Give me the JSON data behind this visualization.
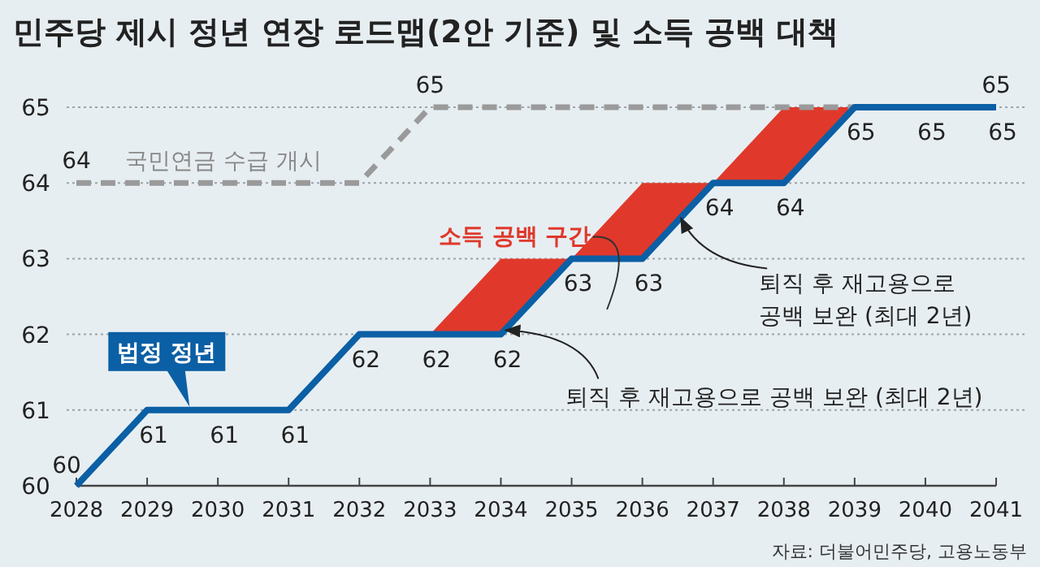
{
  "chart_data": {
    "type": "line",
    "title": "민주당 제시 정년 연장 로드맵(2안 기준) 및 소득 공백 대책",
    "xlim": [
      2028,
      2041
    ],
    "xticks": [
      2028,
      2029,
      2030,
      2031,
      2032,
      2033,
      2034,
      2035,
      2036,
      2037,
      2038,
      2039,
      2040,
      2041
    ],
    "ylim": [
      60,
      65
    ],
    "yticks": [
      60,
      61,
      62,
      63,
      64,
      65
    ],
    "grid": "y",
    "legend": false,
    "series": [
      {
        "name": "소득 공백 구간",
        "type": "area",
        "color": "#e0392b",
        "x": [
          2033,
          2034,
          2035,
          2036,
          2037,
          2038,
          2039
        ],
        "values": [
          62,
          63,
          63,
          64,
          64,
          65,
          65
        ]
      },
      {
        "name": "국민연금 수급 개시",
        "type": "line",
        "color": "#9a9a9a",
        "line_style": "dashed",
        "x": [
          2028,
          2029,
          2030,
          2031,
          2032,
          2033,
          2034,
          2035,
          2036,
          2037,
          2038,
          2039,
          2040,
          2041
        ],
        "values": [
          64,
          64,
          64,
          64,
          64,
          65,
          65,
          65,
          65,
          65,
          65,
          65,
          65,
          65
        ],
        "value_labels": [
          "64",
          null,
          null,
          null,
          null,
          "65",
          null,
          null,
          null,
          null,
          null,
          null,
          null,
          "65"
        ]
      },
      {
        "name": "법정 정년",
        "type": "line",
        "color": "#0b5fa5",
        "line_style": "solid",
        "x": [
          2028,
          2029,
          2030,
          2031,
          2032,
          2033,
          2034,
          2035,
          2036,
          2037,
          2038,
          2039,
          2040,
          2041
        ],
        "values": [
          60,
          61,
          61,
          61,
          62,
          62,
          62,
          63,
          63,
          64,
          64,
          65,
          65,
          65
        ],
        "value_labels": [
          "60",
          "61",
          "61",
          "61",
          "62",
          "62",
          "62",
          "63",
          "63",
          "64",
          "64",
          "65",
          "65",
          "65"
        ]
      }
    ],
    "annotations": [
      {
        "text": "퇴직 후 재고용으로 공백 보완 (최대 2년)",
        "x": 2034,
        "y": 62.1
      },
      {
        "text": "퇴직 후 재고용으로\n공백 보완 (최대 2년)",
        "x": 2036.5,
        "y": 63.6
      },
      "자료: 더불어민주당, 고용노동부"
    ]
  }
}
